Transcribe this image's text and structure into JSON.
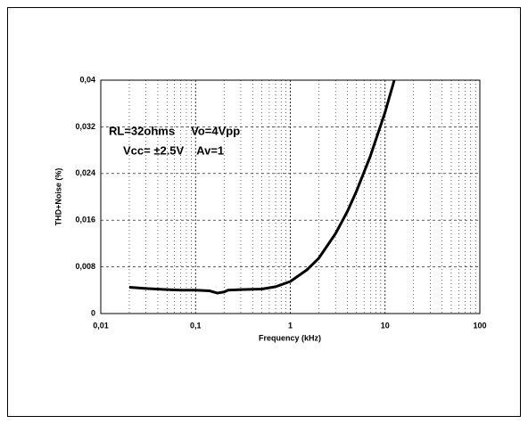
{
  "chart_data": {
    "type": "line",
    "xlabel": "Frequency (kHz)",
    "ylabel": "THD+Noise (%)",
    "annotations": [
      "RL=32ohms     Vo=4Vpp",
      "Vcc= ±2.5V    Av=1"
    ],
    "x_scale": "log",
    "grid": true,
    "xlim": [
      0.01,
      100
    ],
    "ylim": [
      0,
      0.04
    ],
    "xticks": [
      {
        "value": 0.01,
        "label": "0,01"
      },
      {
        "value": 0.1,
        "label": "0,1"
      },
      1,
      10,
      100
    ],
    "yticks": [
      0,
      {
        "value": 0.008,
        "label": "0,008"
      },
      {
        "value": 0.016,
        "label": "0,016"
      },
      {
        "value": 0.024,
        "label": "0,024"
      },
      {
        "value": 0.032,
        "label": "0,032"
      },
      {
        "value": 0.04,
        "label": "0,04"
      }
    ],
    "x": [
      0.02,
      0.03,
      0.05,
      0.07,
      0.1,
      0.14,
      0.17,
      0.2,
      0.22,
      0.3,
      0.5,
      0.7,
      1,
      1.5,
      2,
      3,
      4,
      5,
      7,
      10,
      12.5
    ],
    "series": [
      {
        "name": "THD+N",
        "color": "#000000",
        "values": [
          0.0045,
          0.0043,
          0.0041,
          0.004,
          0.004,
          0.0039,
          0.0035,
          0.0037,
          0.004,
          0.0041,
          0.0042,
          0.0046,
          0.0055,
          0.0075,
          0.0095,
          0.0137,
          0.0175,
          0.021,
          0.027,
          0.0345,
          0.04
        ]
      }
    ]
  }
}
